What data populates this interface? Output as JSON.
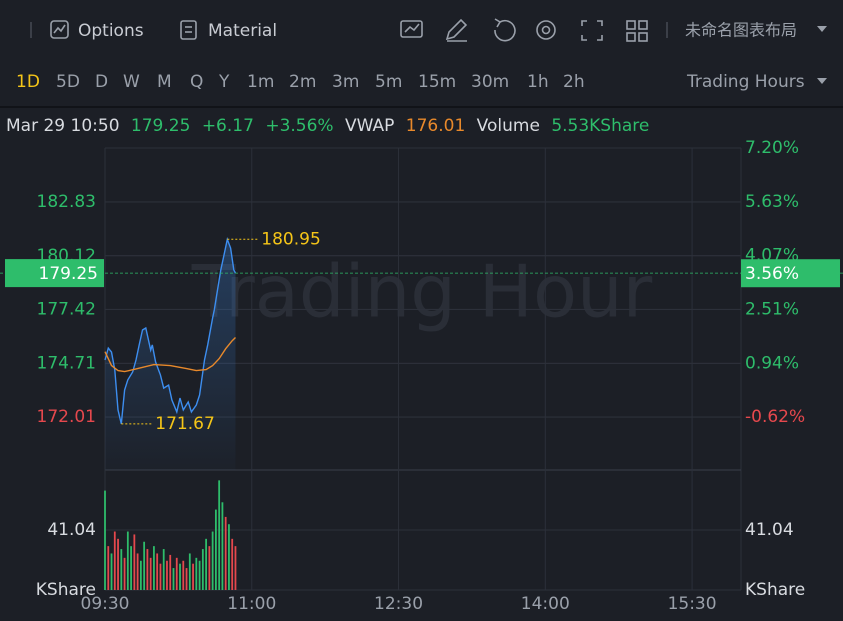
{
  "toolbar": {
    "options": "Options",
    "material": "Material",
    "layout": "未命名图表布局",
    "timeframes": [
      "1D",
      "5D",
      "D",
      "W",
      "M",
      "Q",
      "Y",
      "1m",
      "2m",
      "3m",
      "5m",
      "15m",
      "30m",
      "1h",
      "2h"
    ],
    "session": "Trading Hours"
  },
  "info": {
    "time": "Mar 29 10:50",
    "price": "179.25",
    "change": "+6.17",
    "change_pct": "+3.56%",
    "vwap_label": "VWAP",
    "vwap": "176.01",
    "volume_label": "Volume",
    "volume": "5.53KShare"
  },
  "chart_data": {
    "type": "line",
    "watermark": "Trading Hour",
    "xlim": [
      0,
      390
    ],
    "xticks": [
      {
        "value": 0,
        "label": "09:30"
      },
      {
        "value": 90,
        "label": "11:00"
      },
      {
        "value": 180,
        "label": "12:30"
      },
      {
        "value": 270,
        "label": "14:00"
      },
      {
        "value": 360,
        "label": "15:30"
      }
    ],
    "ylim": [
      169.35,
      185.54
    ],
    "yticks": [
      172.01,
      174.71,
      177.42,
      180.12,
      182.83
    ],
    "ytick_colors": [
      "#e5484d",
      "#2ebd6b",
      "#2ebd6b",
      "#2ebd6b",
      "#2ebd6b"
    ],
    "y2lim": [
      -2.16,
      7.2
    ],
    "y2ticks": [
      {
        "value": -0.62,
        "label": "-0.62%"
      },
      {
        "value": 0.94,
        "label": "0.94%"
      },
      {
        "value": 2.51,
        "label": "2.51%"
      },
      {
        "value": 4.07,
        "label": "4.07%"
      },
      {
        "value": 5.63,
        "label": "5.63%"
      },
      {
        "value": 7.2,
        "label": "7.20%"
      }
    ],
    "y2tick_colors": [
      "#e5484d",
      "#2ebd6b",
      "#2ebd6b",
      "#2ebd6b",
      "#2ebd6b",
      "#2ebd6b"
    ],
    "grid": true,
    "series": [
      {
        "color": "#3d8ef0",
        "x": [
          0,
          2,
          4,
          6,
          8,
          10,
          12,
          14,
          17,
          19,
          21,
          23,
          25,
          28,
          29,
          31,
          34,
          36,
          39,
          41,
          44,
          46,
          48,
          51,
          53,
          56,
          58,
          61,
          63,
          66,
          67,
          69,
          71,
          73,
          75,
          77,
          79,
          80
        ],
        "values": [
          174.88,
          175.48,
          175.28,
          174.38,
          172.37,
          171.67,
          173.37,
          173.88,
          174.28,
          174.88,
          175.64,
          176.39,
          176.49,
          175.38,
          175.64,
          174.78,
          174.13,
          173.47,
          173.62,
          172.87,
          172.27,
          172.97,
          172.37,
          172.77,
          172.27,
          172.62,
          173.12,
          174.88,
          175.64,
          176.99,
          177.4,
          178.4,
          179.41,
          180.16,
          180.95,
          180.51,
          179.41,
          179.25
        ]
      },
      {
        "color": "#e8892b",
        "x": [
          0,
          4,
          8,
          12,
          20,
          30,
          40,
          50,
          56,
          62,
          66,
          70,
          74,
          78,
          80
        ],
        "values": [
          175.3,
          174.6,
          174.35,
          174.3,
          174.45,
          174.65,
          174.6,
          174.45,
          174.35,
          174.4,
          174.6,
          174.95,
          175.45,
          175.85,
          176.01
        ]
      }
    ],
    "high": 180.95,
    "low": 171.67,
    "annotation_color": "#f5c518",
    "last_price": 179.25,
    "last_change": {
      "value": 3.56,
      "label": "3.56%"
    },
    "last_color": "#2ebd6b",
    "volume": {
      "unit": "KShare",
      "ylim": [
        0,
        82.08
      ],
      "yticks": [
        41.04
      ],
      "x": [
        0,
        2,
        4,
        6,
        8,
        10,
        12,
        14,
        16,
        18,
        20,
        22,
        24,
        26,
        28,
        30,
        32,
        34,
        36,
        38,
        40,
        42,
        44,
        46,
        48,
        50,
        52,
        54,
        56,
        58,
        60,
        62,
        64,
        66,
        68,
        70,
        72,
        74,
        76,
        78,
        80
      ],
      "values": [
        68,
        30,
        25,
        40,
        35,
        28,
        22,
        40,
        30,
        38,
        25,
        20,
        33,
        28,
        22,
        30,
        25,
        18,
        28,
        20,
        24,
        15,
        22,
        18,
        20,
        15,
        25,
        18,
        22,
        20,
        28,
        35,
        30,
        40,
        55,
        75,
        60,
        50,
        45,
        35,
        30
      ],
      "colors": [
        "#2ebd6b",
        "#e5484d",
        "#2ebd6b",
        "#e5484d",
        "#e5484d",
        "#2ebd6b",
        "#e5484d",
        "#2ebd6b",
        "#2ebd6b",
        "#e5484d",
        "#e5484d",
        "#2ebd6b",
        "#2ebd6b",
        "#e5484d",
        "#e5484d",
        "#2ebd6b",
        "#e5484d",
        "#e5484d",
        "#2ebd6b",
        "#e5484d",
        "#e5484d",
        "#2ebd6b",
        "#e5484d",
        "#2ebd6b",
        "#e5484d",
        "#e5484d",
        "#2ebd6b",
        "#e5484d",
        "#2ebd6b",
        "#2ebd6b",
        "#2ebd6b",
        "#2ebd6b",
        "#e5484d",
        "#2ebd6b",
        "#2ebd6b",
        "#2ebd6b",
        "#2ebd6b",
        "#e5484d",
        "#2ebd6b",
        "#e5484d",
        "#e5484d"
      ]
    }
  }
}
